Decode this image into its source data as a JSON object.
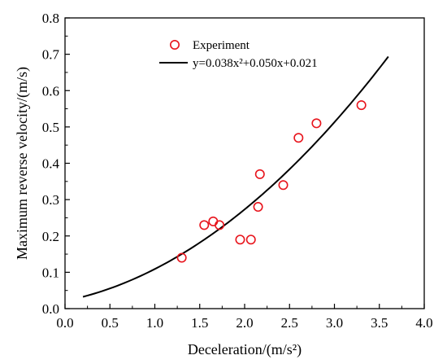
{
  "chart_data": {
    "type": "scatter",
    "xlabel": "Deceleration/(m/s²)",
    "ylabel": "Maximum reverse velocity/(m/s)",
    "xlim": [
      0.0,
      4.0
    ],
    "ylim": [
      0.0,
      0.8
    ],
    "xticks": [
      "0.0",
      "0.5",
      "1.0",
      "1.5",
      "2.0",
      "2.5",
      "3.0",
      "3.5",
      "4.0"
    ],
    "yticks": [
      "0.0",
      "0.1",
      "0.2",
      "0.3",
      "0.4",
      "0.5",
      "0.6",
      "0.7",
      "0.8"
    ],
    "grid": false,
    "legend_position": "top-left",
    "series": [
      {
        "name": "Experiment",
        "kind": "scatter",
        "marker": "open-circle",
        "color": "#e8141c",
        "x": [
          1.3,
          1.55,
          1.65,
          1.72,
          1.95,
          2.07,
          2.15,
          2.17,
          2.43,
          2.6,
          2.8,
          3.3
        ],
        "y": [
          0.14,
          0.23,
          0.24,
          0.23,
          0.19,
          0.19,
          0.28,
          0.37,
          0.34,
          0.47,
          0.51,
          0.56
        ]
      },
      {
        "name": "y=0.038x²+0.050x+0.021",
        "kind": "line",
        "color": "#000000",
        "coefficients": [
          0.038,
          0.05,
          0.021
        ],
        "x_range": [
          0.2,
          3.6
        ]
      }
    ]
  }
}
